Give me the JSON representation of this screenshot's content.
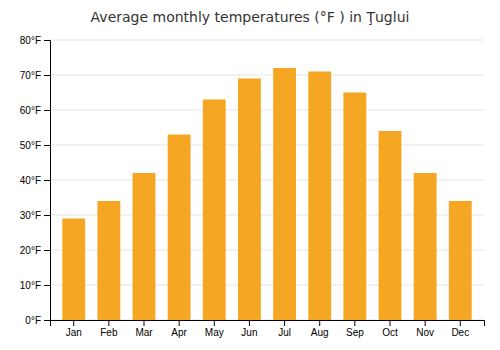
{
  "chart_data": {
    "type": "bar",
    "title": "Average monthly temperatures (°F ) in Ţuglui",
    "categories": [
      "Jan",
      "Feb",
      "Mar",
      "Apr",
      "May",
      "Jun",
      "Jul",
      "Aug",
      "Sep",
      "Oct",
      "Nov",
      "Dec"
    ],
    "values": [
      29,
      34,
      42,
      53,
      63,
      69,
      72,
      71,
      65,
      54,
      42,
      34
    ],
    "color": "#F5A623",
    "ylim": [
      0,
      80
    ],
    "yticks": [
      {
        "value": 0,
        "label": "0°F"
      },
      {
        "value": 10,
        "label": "10°F"
      },
      {
        "value": 20,
        "label": "20°F"
      },
      {
        "value": 30,
        "label": "30°F"
      },
      {
        "value": 40,
        "label": "40°F"
      },
      {
        "value": 50,
        "label": "50°F"
      },
      {
        "value": 60,
        "label": "60°F"
      },
      {
        "value": 70,
        "label": "70°F"
      },
      {
        "value": 80,
        "label": "80°F"
      }
    ],
    "grid": true
  }
}
